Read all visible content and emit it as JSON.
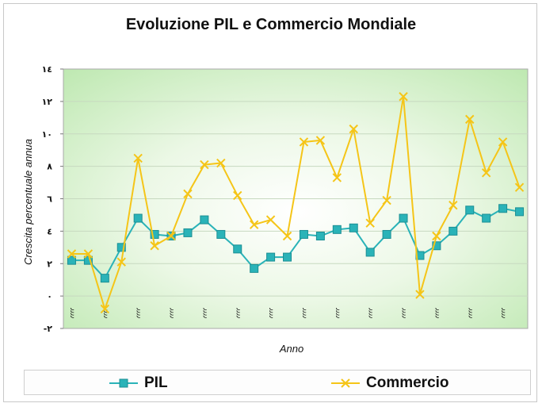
{
  "chart_data": {
    "type": "line",
    "title": "Evoluzione PIL e Commercio Mondiale",
    "xlabel": "Anno",
    "ylabel": "Crescita percentuale annua",
    "ylim": [
      -2,
      14
    ],
    "yticks": [
      -2,
      0,
      2,
      4,
      6,
      8,
      10,
      12,
      14
    ],
    "ytick_labels": [
      "-٢",
      "٠",
      "٢",
      "٤",
      "٦",
      "٨",
      "١٠",
      "١٢",
      "١٤"
    ],
    "xtick_label": "٫٫٫٫",
    "xtick_positions": [
      0,
      2,
      4,
      6,
      8,
      10,
      12,
      14,
      16,
      18,
      20,
      22,
      24,
      26
    ],
    "categories": [
      1,
      2,
      3,
      4,
      5,
      6,
      7,
      8,
      9,
      10,
      11,
      12,
      13,
      14,
      15,
      16,
      17,
      18,
      19,
      20,
      21,
      22,
      23,
      24,
      25,
      26,
      27,
      28
    ],
    "series": [
      {
        "name": "PIL",
        "color": "#2ab3b8",
        "marker": "square",
        "values": [
          2.2,
          2.2,
          1.1,
          3.0,
          4.8,
          3.8,
          3.7,
          3.9,
          4.7,
          3.8,
          2.9,
          1.7,
          2.4,
          2.4,
          3.8,
          3.7,
          4.1,
          4.2,
          2.7,
          3.8,
          4.8,
          2.5,
          3.1,
          4.0,
          5.3,
          4.8,
          5.4,
          5.2
        ]
      },
      {
        "name": "Commercio",
        "color": "#f5c518",
        "marker": "x",
        "values": [
          2.6,
          2.6,
          -0.8,
          2.1,
          8.5,
          3.1,
          3.7,
          6.3,
          8.1,
          8.2,
          6.2,
          4.4,
          4.7,
          3.7,
          9.5,
          9.6,
          7.3,
          10.3,
          4.5,
          5.9,
          12.3,
          0.1,
          3.7,
          5.6,
          10.9,
          7.6,
          9.5,
          6.7
        ]
      }
    ],
    "grid": true,
    "legend": "bottom"
  }
}
